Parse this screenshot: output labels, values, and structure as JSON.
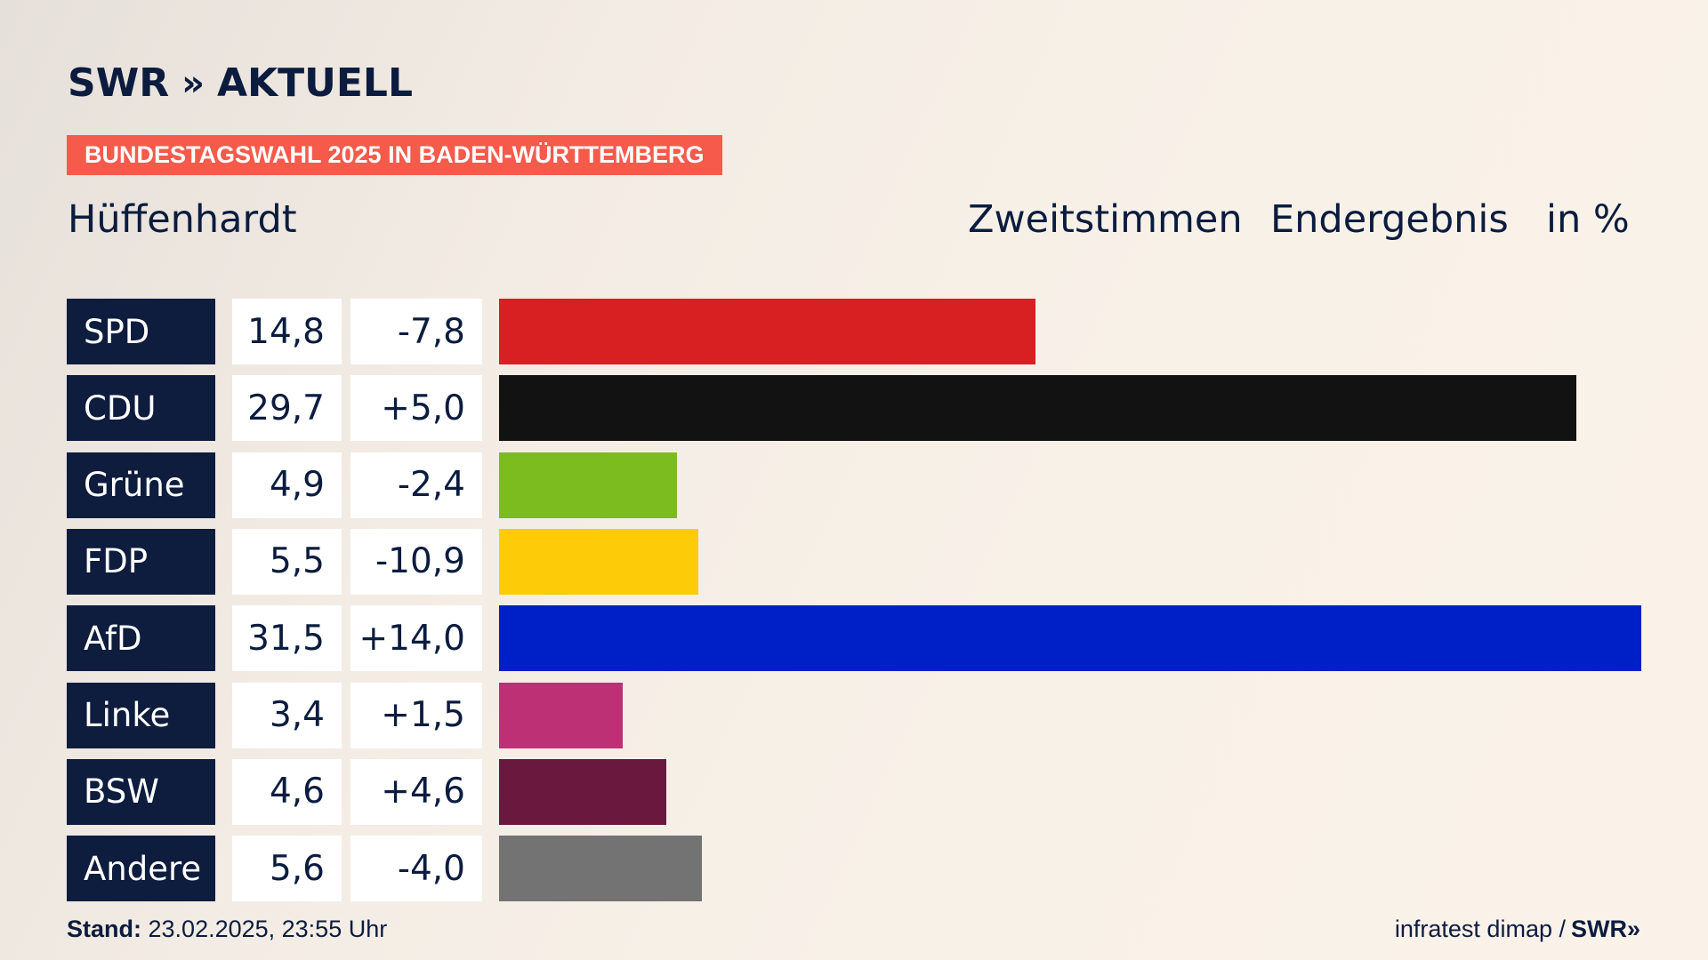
{
  "logo": {
    "brand": "SWR",
    "chevrons": "»",
    "product": "AKTUELL"
  },
  "banner": "BUNDESTAGSWAHL 2025 IN BADEN-WÜRTTEMBERG",
  "place": "Hüffenhardt",
  "header": {
    "type": "Zweitstimmen",
    "state": "Endergebnis",
    "unit": "in %"
  },
  "footer": {
    "stand_label": "Stand:",
    "stand_value": "23.02.2025, 23:55 Uhr",
    "source": "infratest dimap /",
    "source_brand": "SWR»"
  },
  "chart_data": {
    "type": "bar",
    "orientation": "horizontal",
    "categories": [
      "SPD",
      "CDU",
      "Grüne",
      "FDP",
      "AfD",
      "Linke",
      "BSW",
      "Andere"
    ],
    "values": [
      14.8,
      29.7,
      4.9,
      5.5,
      31.5,
      3.4,
      4.6,
      5.6
    ],
    "values_display": [
      "14,8",
      "29,7",
      "4,9",
      "5,5",
      "31,5",
      "3,4",
      "4,6",
      "5,6"
    ],
    "diffs_display": [
      "-7,8",
      "+5,0",
      "-2,4",
      "-10,9",
      "+14,0",
      "+1,5",
      "+4,6",
      "-4,0"
    ],
    "colors": [
      "#d81f22",
      "#121212",
      "#7cbc1e",
      "#fdcb08",
      "#0020c7",
      "#bd3075",
      "#6a183d",
      "#737374"
    ],
    "title": "Hüffenhardt",
    "xlim": [
      0,
      31.5
    ],
    "grid": false,
    "legend": "none"
  }
}
